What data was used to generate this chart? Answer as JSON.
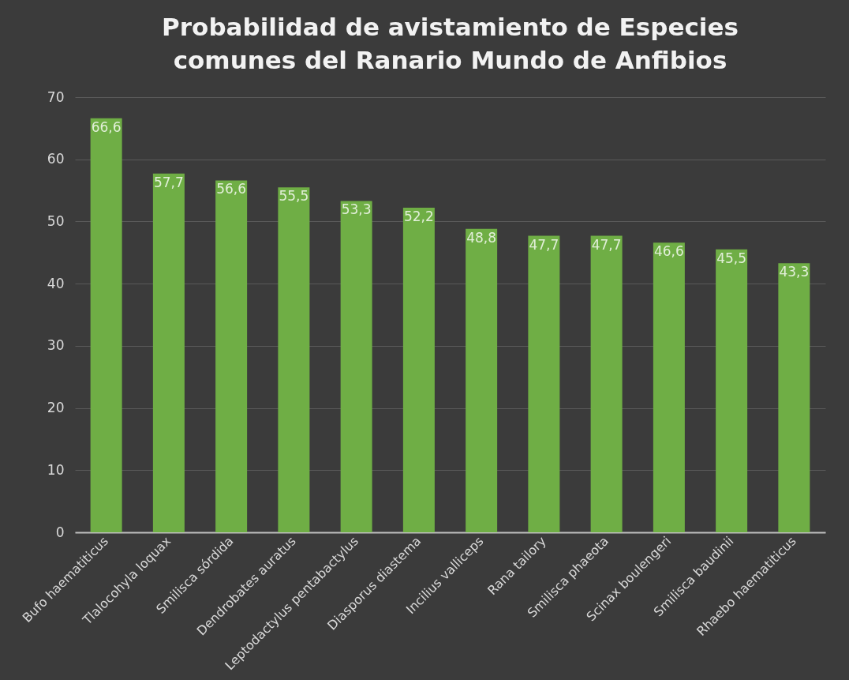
{
  "chart_data": {
    "type": "bar",
    "title": "Probabilidad de avistamiento de Especies comunes del Ranario Mundo de Anfibios",
    "categories": [
      "Bufo haematiticus",
      "Tlalocohyla loquax",
      "Smilisca sórdida",
      "Dendrobates auratus",
      "Leptodactylus pentabactylus",
      "Diasporus diastema",
      "Incilius valliceps",
      "Rana tailory",
      "Smilisca phaeota",
      "Scinax boulengeri",
      "Smilisca baudinii",
      "Rhaebo haematiticus"
    ],
    "values": [
      66.6,
      57.7,
      56.6,
      55.5,
      53.3,
      52.2,
      48.8,
      47.7,
      47.7,
      46.6,
      45.5,
      43.3
    ],
    "value_labels": [
      "66,6",
      "57,7",
      "56,6",
      "55,5",
      "53,3",
      "52,2",
      "48,8",
      "47,7",
      "47,7",
      "46,6",
      "45,5",
      "43,3"
    ],
    "color": "#6fae45",
    "ylim": [
      0,
      70
    ],
    "yticks": [
      0,
      10,
      20,
      30,
      40,
      50,
      60,
      70
    ],
    "grid": "y"
  }
}
